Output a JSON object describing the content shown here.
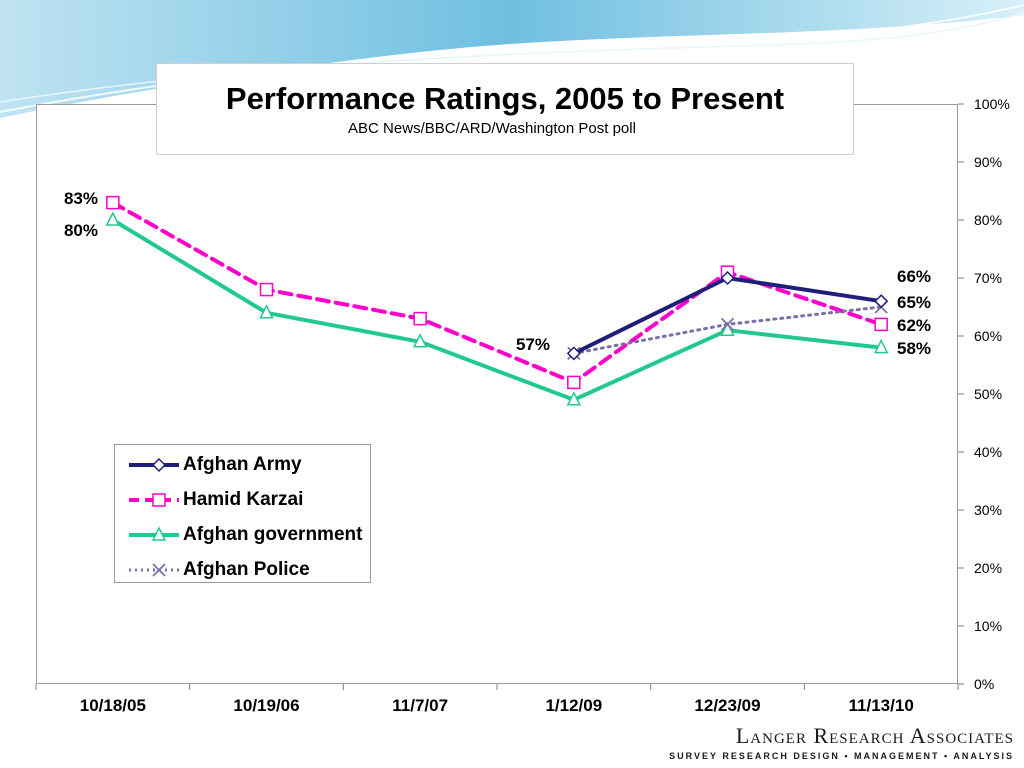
{
  "chart_data": {
    "type": "line",
    "title": "Performance Ratings, 2005 to Present",
    "subtitle": "ABC News/BBC/ARD/Washington Post poll",
    "categories": [
      "10/18/05",
      "10/19/06",
      "11/7/07",
      "1/12/09",
      "12/23/09",
      "11/13/10"
    ],
    "ylim": [
      0,
      100
    ],
    "y_ticks": [
      "0%",
      "10%",
      "20%",
      "30%",
      "40%",
      "50%",
      "60%",
      "70%",
      "80%",
      "90%",
      "100%"
    ],
    "y_axis_side": "right",
    "legend_position": "lower-left",
    "grid": false,
    "series": [
      {
        "name": "Afghan Army",
        "values": [
          null,
          null,
          null,
          57,
          70,
          66
        ],
        "color": "#1f1f7a",
        "marker": "diamond",
        "dash": "solid"
      },
      {
        "name": "Hamid Karzai",
        "values": [
          83,
          68,
          63,
          52,
          71,
          62
        ],
        "color": "#ff00cc",
        "marker": "square",
        "dash": "dashed"
      },
      {
        "name": "Afghan government",
        "values": [
          80,
          64,
          59,
          49,
          61,
          58
        ],
        "color": "#22c98f",
        "marker": "triangle",
        "dash": "solid"
      },
      {
        "name": "Afghan Police",
        "values": [
          null,
          null,
          null,
          57,
          62,
          65
        ],
        "color": "#7a6fa8",
        "marker": "x",
        "dash": "dotted"
      }
    ],
    "data_labels": [
      {
        "text": "83%",
        "series": "Hamid Karzai",
        "index": 0
      },
      {
        "text": "80%",
        "series": "Afghan government",
        "index": 0
      },
      {
        "text": "57%",
        "series": "Afghan Army",
        "index": 3
      },
      {
        "text": "66%",
        "series": "Afghan Army",
        "index": 5
      },
      {
        "text": "65%",
        "series": "Afghan Police",
        "index": 5
      },
      {
        "text": "62%",
        "series": "Hamid Karzai",
        "index": 5
      },
      {
        "text": "58%",
        "series": "Afghan government",
        "index": 5
      }
    ]
  },
  "legend": {
    "items": [
      "Afghan Army",
      "Hamid Karzai",
      "Afghan government",
      "Afghan Police"
    ]
  },
  "logo": {
    "name": "Langer Research Associates",
    "tagline": "SURVEY RESEARCH DESIGN • MANAGEMENT • ANALYSIS"
  }
}
